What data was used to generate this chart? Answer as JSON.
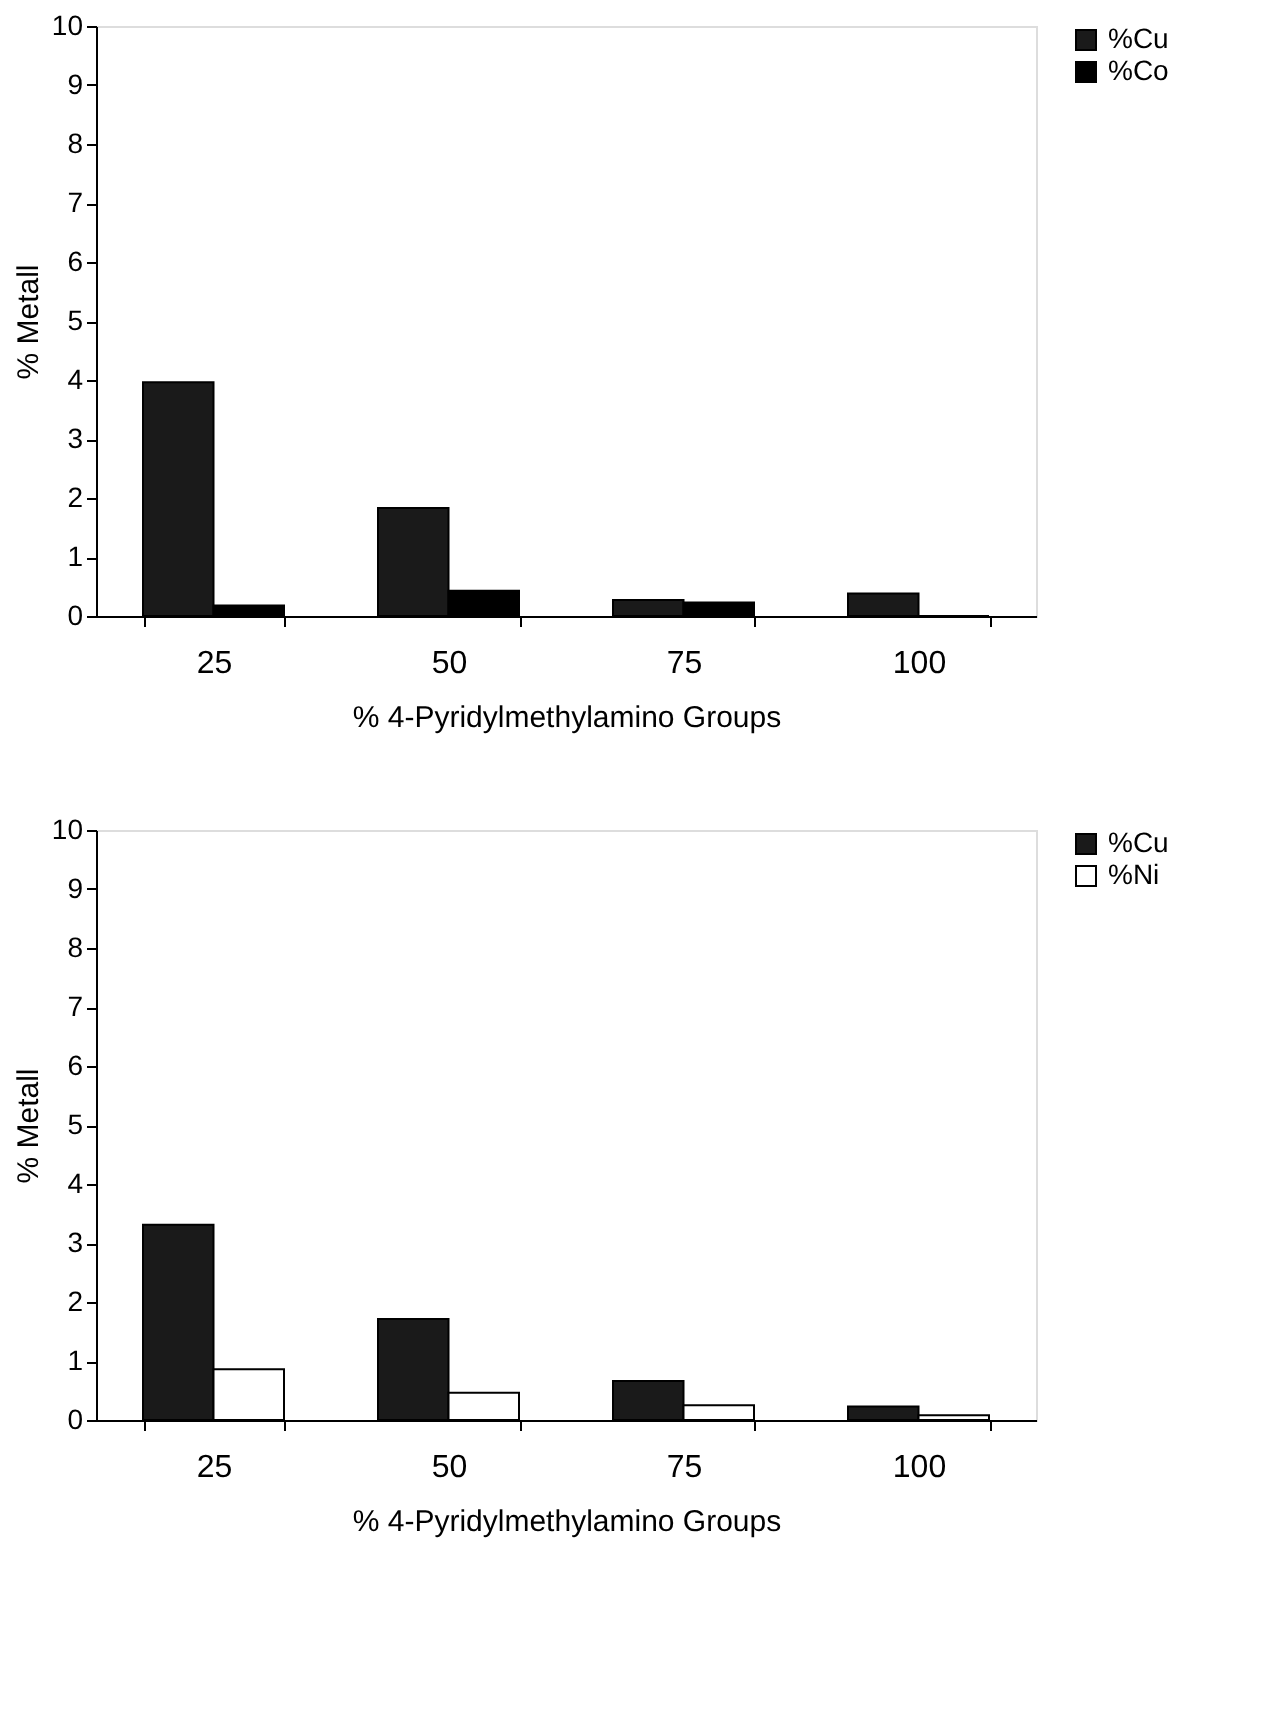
{
  "chart_data": [
    {
      "type": "bar",
      "categories": [
        "25",
        "50",
        "75",
        "100"
      ],
      "xlabel": "% 4-Pyridylmethylamino Groups",
      "ylabel": "% Metall",
      "ylim": [
        0,
        10
      ],
      "yticks": [
        0,
        1,
        2,
        3,
        4,
        5,
        6,
        7,
        8,
        9,
        10
      ],
      "grid": false,
      "legend": "right",
      "series": [
        {
          "name": "%Cu",
          "color": "#1a1a1a",
          "values": [
            3.96,
            1.83,
            0.27,
            0.38
          ]
        },
        {
          "name": "%Co",
          "color": "#000000",
          "values": [
            0.18,
            0.43,
            0.23,
            0
          ]
        }
      ]
    },
    {
      "type": "bar",
      "categories": [
        "25",
        "50",
        "75",
        "100"
      ],
      "xlabel": "% 4-Pyridylmethylamino Groups",
      "ylabel": "% Metall",
      "ylim": [
        0,
        10
      ],
      "yticks": [
        0,
        1,
        2,
        3,
        4,
        5,
        6,
        7,
        8,
        9,
        10
      ],
      "grid": false,
      "legend": "right",
      "series": [
        {
          "name": "%Cu",
          "color": "#1a1a1a",
          "values": [
            3.31,
            1.71,
            0.66,
            0.23
          ]
        },
        {
          "name": "%Ni",
          "color": "#ffffff",
          "values": [
            0.86,
            0.46,
            0.25,
            0.08
          ]
        }
      ]
    }
  ]
}
